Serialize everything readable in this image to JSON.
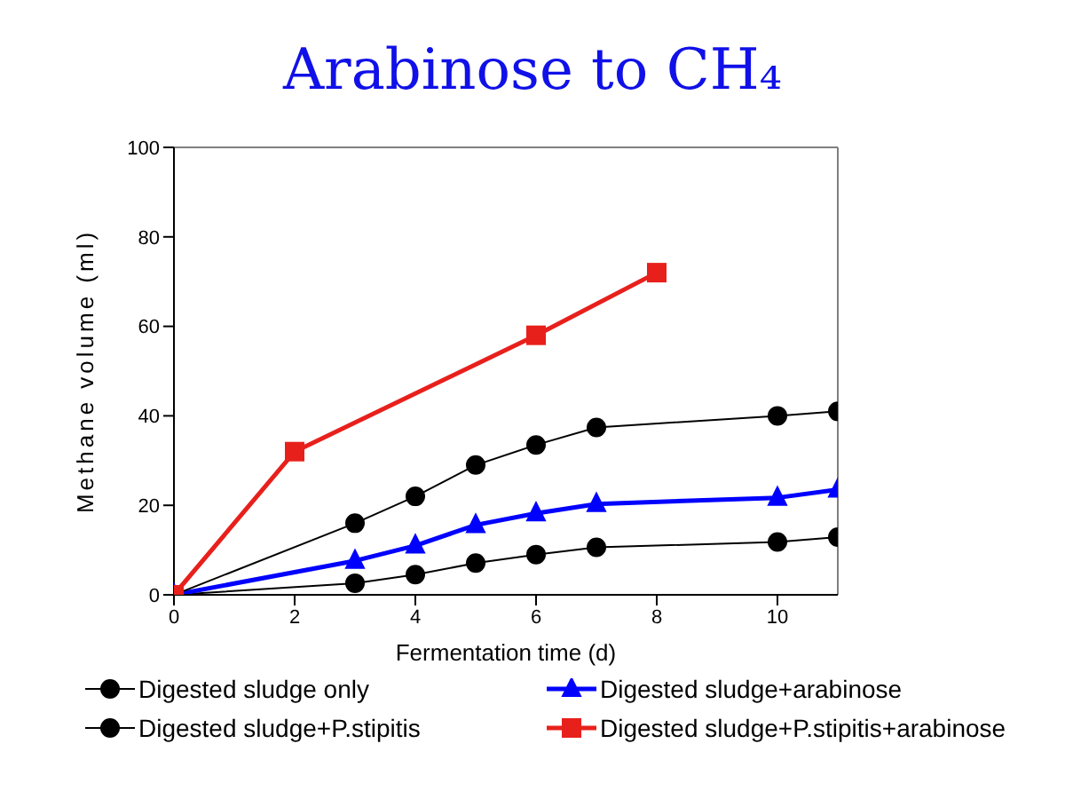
{
  "chart_data": {
    "type": "line",
    "title": "Arabinose to CH₄",
    "xlabel": "Fermentation time (d)",
    "ylabel": "Methane volume (ml)",
    "xlim": [
      0,
      11
    ],
    "xticks": [
      0,
      2,
      4,
      6,
      8,
      10
    ],
    "ylim": [
      0,
      100
    ],
    "yticks": [
      0,
      20,
      40,
      60,
      80,
      100
    ],
    "legend": "bottom",
    "series": [
      {
        "name": "Digested sludge only",
        "color": "#000000",
        "marker": "circle",
        "x": [
          0,
          3,
          4,
          5,
          6,
          7,
          10,
          11
        ],
        "values": [
          0,
          2.6,
          4.5,
          7.1,
          9,
          10.6,
          11.8,
          12.9
        ]
      },
      {
        "name": "Digested sludge+arabinose",
        "color": "#0000ff",
        "marker": "triangle",
        "x": [
          0,
          3,
          4,
          5,
          6,
          7,
          10,
          11
        ],
        "values": [
          0,
          7.6,
          11,
          15.6,
          18.2,
          20.3,
          21.7,
          23.5
        ]
      },
      {
        "name": "Digested sludge+P.stipitis",
        "color": "#000000",
        "marker": "circle",
        "x": [
          0,
          3,
          4,
          5,
          6,
          7,
          10,
          11
        ],
        "values": [
          0,
          16,
          22,
          29,
          33.5,
          37.4,
          40,
          41
        ]
      },
      {
        "name": "Digested sludge+P.stipitis+arabinose",
        "color": "#e8201c",
        "marker": "square",
        "x": [
          0,
          2,
          6,
          8
        ],
        "values": [
          0,
          32,
          58,
          72
        ]
      }
    ]
  }
}
